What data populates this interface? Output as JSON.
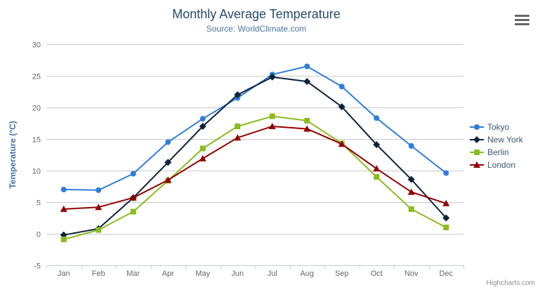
{
  "header": {
    "title": "Monthly Average Temperature",
    "subtitle": "Source: WorldClimate.com",
    "context_menu_icon": "hamburger-icon"
  },
  "credits": "Highcharts.com",
  "chart_data": {
    "type": "line",
    "title": "Monthly Average Temperature",
    "subtitle": "Source: WorldClimate.com",
    "categories": [
      "Jan",
      "Feb",
      "Mar",
      "Apr",
      "May",
      "Jun",
      "Jul",
      "Aug",
      "Sep",
      "Oct",
      "Nov",
      "Dec"
    ],
    "series": [
      {
        "name": "Tokyo",
        "color": "#2f7ed8",
        "marker": "circle",
        "values": [
          7.0,
          6.9,
          9.5,
          14.5,
          18.2,
          21.5,
          25.2,
          26.5,
          23.3,
          18.3,
          13.9,
          9.6
        ]
      },
      {
        "name": "New York",
        "color": "#0d233a",
        "marker": "diamond",
        "values": [
          -0.2,
          0.8,
          5.7,
          11.3,
          17.0,
          22.0,
          24.8,
          24.1,
          20.1,
          14.1,
          8.6,
          2.5
        ]
      },
      {
        "name": "Berlin",
        "color": "#8bbc21",
        "marker": "square",
        "values": [
          -0.9,
          0.6,
          3.5,
          8.4,
          13.5,
          17.0,
          18.6,
          17.9,
          14.3,
          9.0,
          3.9,
          1.0
        ]
      },
      {
        "name": "London",
        "color": "#910000",
        "marker": "triangle",
        "values": [
          3.9,
          4.2,
          5.7,
          8.5,
          11.9,
          15.2,
          17.0,
          16.6,
          14.2,
          10.3,
          6.6,
          4.8
        ]
      }
    ],
    "xlabel": "",
    "ylabel": "Temperature (°C)",
    "ylim": [
      -5,
      30
    ],
    "yticks": [
      -5,
      0,
      5,
      10,
      15,
      20,
      25,
      30
    ],
    "grid": true,
    "legend_position": "right",
    "colors": {
      "grid_line": "#c9c9c9",
      "axis_line": "#c0d0e0",
      "tick_label": "#666666",
      "axis_title": "#4572a7",
      "legend_text": "#3e576f"
    }
  }
}
